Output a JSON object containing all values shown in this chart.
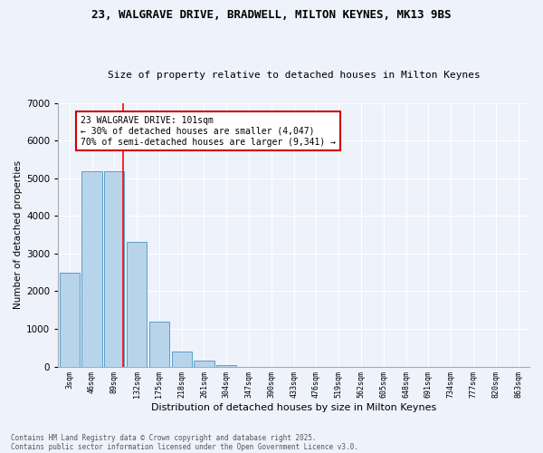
{
  "title_line1": "23, WALGRAVE DRIVE, BRADWELL, MILTON KEYNES, MK13 9BS",
  "title_line2": "Size of property relative to detached houses in Milton Keynes",
  "xlabel": "Distribution of detached houses by size in Milton Keynes",
  "ylabel": "Number of detached properties",
  "categories": [
    "3sqm",
    "46sqm",
    "89sqm",
    "132sqm",
    "175sqm",
    "218sqm",
    "261sqm",
    "304sqm",
    "347sqm",
    "390sqm",
    "433sqm",
    "476sqm",
    "519sqm",
    "562sqm",
    "605sqm",
    "648sqm",
    "691sqm",
    "734sqm",
    "777sqm",
    "820sqm",
    "863sqm"
  ],
  "values": [
    2500,
    5200,
    5200,
    3300,
    1200,
    400,
    150,
    50,
    0,
    0,
    0,
    0,
    0,
    0,
    0,
    0,
    0,
    0,
    0,
    0,
    0
  ],
  "bar_color": "#b8d4ea",
  "bar_edge_color": "#5a9ec8",
  "red_line_x": 2.38,
  "annotation_text": "23 WALGRAVE DRIVE: 101sqm\n← 30% of detached houses are smaller (4,047)\n70% of semi-detached houses are larger (9,341) →",
  "annotation_box_color": "#ffffff",
  "annotation_box_edge_color": "#cc0000",
  "ylim": [
    0,
    7000
  ],
  "yticks": [
    0,
    1000,
    2000,
    3000,
    4000,
    5000,
    6000,
    7000
  ],
  "background_color": "#eef2fb",
  "grid_color": "#ffffff",
  "footer_line1": "Contains HM Land Registry data © Crown copyright and database right 2025.",
  "footer_line2": "Contains public sector information licensed under the Open Government Licence v3.0."
}
